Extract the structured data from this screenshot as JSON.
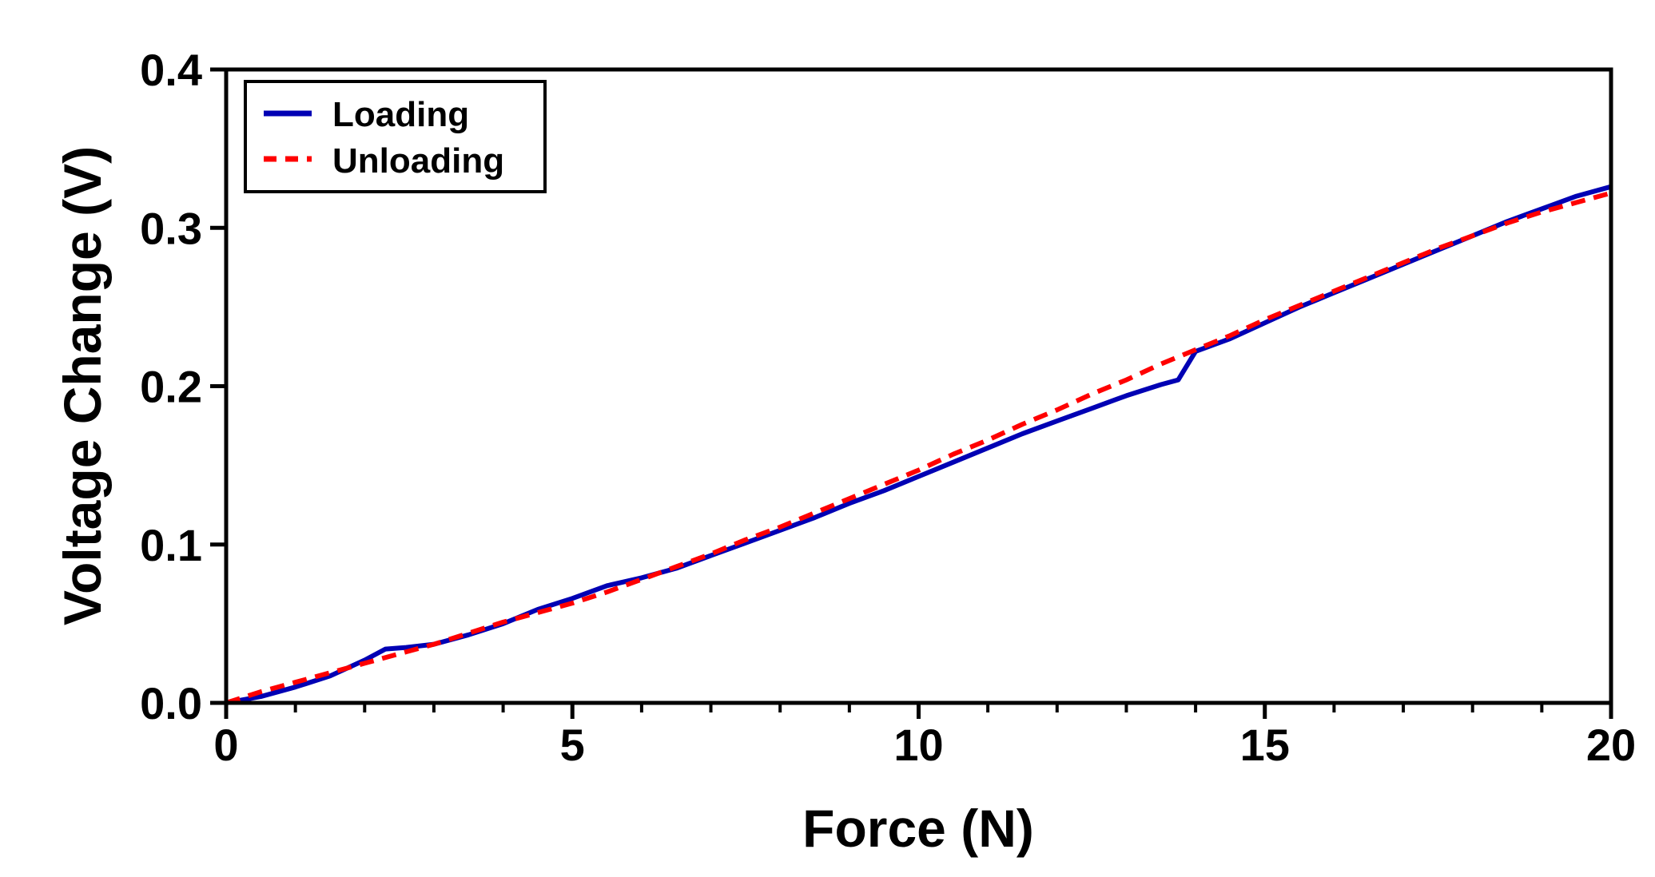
{
  "chart_data": {
    "type": "line",
    "title": "",
    "xlabel": "Force (N)",
    "ylabel": "Voltage Change (V)",
    "xlim": [
      0,
      20
    ],
    "ylim": [
      0,
      0.4
    ],
    "x_ticks": [
      0,
      5,
      10,
      15,
      20
    ],
    "x_tick_labels": [
      "0",
      "5",
      "10",
      "15",
      "20"
    ],
    "y_ticks": [
      0,
      0.1,
      0.2,
      0.3,
      0.4
    ],
    "y_tick_labels": [
      "0.0",
      "0.1",
      "0.2",
      "0.3",
      "0.4"
    ],
    "x_minor_step": 1,
    "grid": false,
    "legend_position": "top-left",
    "series": [
      {
        "name": "Loading",
        "color": "#0000b4",
        "style": "solid",
        "x": [
          0,
          0.5,
          1.0,
          1.5,
          2.0,
          2.3,
          2.6,
          3.0,
          3.5,
          4.0,
          4.5,
          5.0,
          5.5,
          6.0,
          6.5,
          7.0,
          7.5,
          8.0,
          8.5,
          9.0,
          9.5,
          10.0,
          10.5,
          11.0,
          11.5,
          12.0,
          12.5,
          13.0,
          13.5,
          13.75,
          14.0,
          14.5,
          15.0,
          15.5,
          16.0,
          16.5,
          17.0,
          17.5,
          18.0,
          18.5,
          19.0,
          19.5,
          20.0
        ],
        "y": [
          0,
          0.004,
          0.01,
          0.017,
          0.027,
          0.034,
          0.035,
          0.037,
          0.043,
          0.05,
          0.059,
          0.066,
          0.074,
          0.079,
          0.085,
          0.093,
          0.101,
          0.109,
          0.117,
          0.126,
          0.134,
          0.143,
          0.152,
          0.161,
          0.17,
          0.178,
          0.186,
          0.194,
          0.201,
          0.204,
          0.222,
          0.23,
          0.24,
          0.25,
          0.259,
          0.268,
          0.277,
          0.286,
          0.295,
          0.304,
          0.312,
          0.32,
          0.326
        ]
      },
      {
        "name": "Unloading",
        "color": "#ff0000",
        "style": "dashed",
        "x": [
          0,
          0.5,
          1.0,
          1.5,
          2.0,
          2.5,
          3.0,
          3.5,
          4.0,
          4.5,
          5.0,
          5.5,
          6.0,
          6.5,
          7.0,
          7.5,
          8.0,
          8.5,
          9.0,
          9.5,
          10.0,
          10.5,
          11.0,
          11.5,
          12.0,
          12.5,
          13.0,
          13.5,
          14.0,
          14.5,
          15.0,
          15.5,
          16.0,
          16.5,
          17.0,
          17.5,
          18.0,
          18.5,
          19.0,
          19.5,
          20.0
        ],
        "y": [
          0,
          0.007,
          0.013,
          0.019,
          0.025,
          0.031,
          0.037,
          0.044,
          0.051,
          0.057,
          0.063,
          0.07,
          0.078,
          0.086,
          0.094,
          0.103,
          0.111,
          0.12,
          0.129,
          0.138,
          0.147,
          0.157,
          0.166,
          0.176,
          0.185,
          0.195,
          0.204,
          0.214,
          0.223,
          0.232,
          0.242,
          0.251,
          0.26,
          0.269,
          0.278,
          0.287,
          0.295,
          0.303,
          0.31,
          0.316,
          0.322
        ]
      }
    ]
  }
}
